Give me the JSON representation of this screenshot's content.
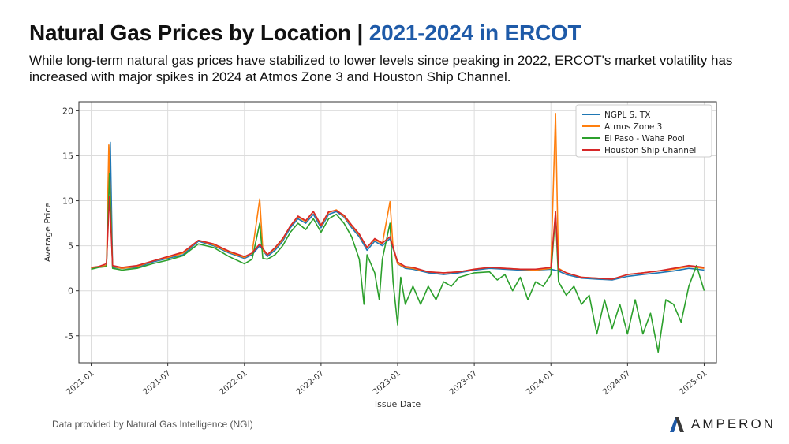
{
  "header": {
    "title_main": "Natural Gas Prices by Location | ",
    "title_accent": "2021-2024 in ERCOT",
    "subtitle": "While long-term natural gas prices have stabilized to lower levels since peaking in 2022, ERCOT's market volatility has increased with major spikes in 2024 at Atmos Zone 3 and Houston Ship Channel."
  },
  "footer": {
    "source": "Data provided by Natural Gas Intelligence (NGI)",
    "brand": "AMPERON",
    "brand_icon": "amperon-logo-icon"
  },
  "chart_data": {
    "type": "line",
    "title": "",
    "xlabel": "Issue Date",
    "ylabel": "Average Price",
    "ylim": [
      -8,
      21
    ],
    "yticks": [
      -5,
      0,
      5,
      10,
      15,
      20
    ],
    "xlim": [
      2020.92,
      2025.08
    ],
    "xticks": [
      {
        "value": 2021.0,
        "label": "2021-01"
      },
      {
        "value": 2021.5,
        "label": "2021-07"
      },
      {
        "value": 2022.0,
        "label": "2022-01"
      },
      {
        "value": 2022.5,
        "label": "2022-07"
      },
      {
        "value": 2023.0,
        "label": "2023-01"
      },
      {
        "value": 2023.5,
        "label": "2023-07"
      },
      {
        "value": 2024.0,
        "label": "2024-01"
      },
      {
        "value": 2024.5,
        "label": "2024-07"
      },
      {
        "value": 2025.0,
        "label": "2025-01"
      }
    ],
    "grid": true,
    "legend": "top-right",
    "series": [
      {
        "name": "NGPL S. TX",
        "color": "#1f77b4",
        "points": [
          [
            2021.0,
            2.5
          ],
          [
            2021.05,
            2.7
          ],
          [
            2021.1,
            2.8
          ],
          [
            2021.125,
            16.5
          ],
          [
            2021.14,
            2.6
          ],
          [
            2021.2,
            2.5
          ],
          [
            2021.3,
            2.6
          ],
          [
            2021.4,
            3.2
          ],
          [
            2021.5,
            3.6
          ],
          [
            2021.6,
            4.0
          ],
          [
            2021.7,
            5.5
          ],
          [
            2021.8,
            5.0
          ],
          [
            2021.9,
            4.2
          ],
          [
            2022.0,
            3.6
          ],
          [
            2022.05,
            4.0
          ],
          [
            2022.1,
            5.0
          ],
          [
            2022.15,
            3.8
          ],
          [
            2022.2,
            4.5
          ],
          [
            2022.25,
            5.5
          ],
          [
            2022.3,
            7.0
          ],
          [
            2022.35,
            8.0
          ],
          [
            2022.4,
            7.5
          ],
          [
            2022.45,
            8.5
          ],
          [
            2022.5,
            7.0
          ],
          [
            2022.55,
            8.5
          ],
          [
            2022.6,
            8.8
          ],
          [
            2022.65,
            8.2
          ],
          [
            2022.7,
            7.0
          ],
          [
            2022.75,
            6.0
          ],
          [
            2022.8,
            4.5
          ],
          [
            2022.85,
            5.5
          ],
          [
            2022.9,
            5.0
          ],
          [
            2022.95,
            5.8
          ],
          [
            2023.0,
            3.0
          ],
          [
            2023.05,
            2.5
          ],
          [
            2023.1,
            2.4
          ],
          [
            2023.2,
            2.0
          ],
          [
            2023.3,
            1.8
          ],
          [
            2023.4,
            2.0
          ],
          [
            2023.5,
            2.3
          ],
          [
            2023.6,
            2.5
          ],
          [
            2023.7,
            2.4
          ],
          [
            2023.8,
            2.3
          ],
          [
            2023.9,
            2.3
          ],
          [
            2024.0,
            2.4
          ],
          [
            2024.05,
            2.2
          ],
          [
            2024.1,
            1.8
          ],
          [
            2024.2,
            1.4
          ],
          [
            2024.3,
            1.3
          ],
          [
            2024.4,
            1.2
          ],
          [
            2024.5,
            1.6
          ],
          [
            2024.6,
            1.8
          ],
          [
            2024.7,
            2.0
          ],
          [
            2024.8,
            2.2
          ],
          [
            2024.9,
            2.5
          ],
          [
            2025.0,
            2.3
          ]
        ]
      },
      {
        "name": "Atmos Zone 3",
        "color": "#ff7f0e",
        "points": [
          [
            2021.0,
            2.5
          ],
          [
            2021.05,
            2.7
          ],
          [
            2021.1,
            2.8
          ],
          [
            2021.115,
            16.2
          ],
          [
            2021.14,
            2.7
          ],
          [
            2021.2,
            2.5
          ],
          [
            2021.3,
            2.7
          ],
          [
            2021.4,
            3.3
          ],
          [
            2021.5,
            3.7
          ],
          [
            2021.6,
            4.2
          ],
          [
            2021.7,
            5.6
          ],
          [
            2021.8,
            5.1
          ],
          [
            2021.9,
            4.3
          ],
          [
            2022.0,
            3.7
          ],
          [
            2022.05,
            4.2
          ],
          [
            2022.1,
            10.2
          ],
          [
            2022.12,
            4.5
          ],
          [
            2022.15,
            4.0
          ],
          [
            2022.2,
            4.7
          ],
          [
            2022.25,
            5.7
          ],
          [
            2022.3,
            7.2
          ],
          [
            2022.35,
            8.2
          ],
          [
            2022.4,
            7.7
          ],
          [
            2022.45,
            8.8
          ],
          [
            2022.5,
            7.2
          ],
          [
            2022.55,
            8.7
          ],
          [
            2022.6,
            9.0
          ],
          [
            2022.65,
            8.3
          ],
          [
            2022.7,
            7.2
          ],
          [
            2022.75,
            6.2
          ],
          [
            2022.8,
            4.8
          ],
          [
            2022.85,
            5.7
          ],
          [
            2022.9,
            5.2
          ],
          [
            2022.95,
            9.9
          ],
          [
            2022.97,
            4.8
          ],
          [
            2023.0,
            3.0
          ],
          [
            2023.05,
            2.6
          ],
          [
            2023.1,
            2.5
          ],
          [
            2023.2,
            2.1
          ],
          [
            2023.3,
            2.0
          ],
          [
            2023.4,
            2.1
          ],
          [
            2023.5,
            2.4
          ],
          [
            2023.6,
            2.6
          ],
          [
            2023.7,
            2.5
          ],
          [
            2023.8,
            2.4
          ],
          [
            2023.9,
            2.3
          ],
          [
            2024.0,
            2.5
          ],
          [
            2024.03,
            19.7
          ],
          [
            2024.05,
            2.5
          ],
          [
            2024.1,
            2.0
          ],
          [
            2024.2,
            1.5
          ],
          [
            2024.3,
            1.4
          ],
          [
            2024.4,
            1.3
          ],
          [
            2024.5,
            1.8
          ],
          [
            2024.6,
            2.0
          ],
          [
            2024.7,
            2.2
          ],
          [
            2024.8,
            2.4
          ],
          [
            2024.9,
            2.7
          ],
          [
            2025.0,
            2.5
          ]
        ]
      },
      {
        "name": "El Paso - Waha Pool",
        "color": "#2ca02c",
        "points": [
          [
            2021.0,
            2.4
          ],
          [
            2021.05,
            2.6
          ],
          [
            2021.1,
            2.7
          ],
          [
            2021.12,
            13.0
          ],
          [
            2021.14,
            2.5
          ],
          [
            2021.2,
            2.3
          ],
          [
            2021.3,
            2.5
          ],
          [
            2021.4,
            3.0
          ],
          [
            2021.5,
            3.4
          ],
          [
            2021.6,
            3.9
          ],
          [
            2021.7,
            5.2
          ],
          [
            2021.8,
            4.8
          ],
          [
            2021.9,
            3.8
          ],
          [
            2022.0,
            3.0
          ],
          [
            2022.05,
            3.5
          ],
          [
            2022.1,
            7.5
          ],
          [
            2022.12,
            3.6
          ],
          [
            2022.15,
            3.5
          ],
          [
            2022.2,
            4.0
          ],
          [
            2022.25,
            5.0
          ],
          [
            2022.3,
            6.5
          ],
          [
            2022.35,
            7.5
          ],
          [
            2022.4,
            6.8
          ],
          [
            2022.45,
            8.0
          ],
          [
            2022.5,
            6.5
          ],
          [
            2022.55,
            8.0
          ],
          [
            2022.6,
            8.5
          ],
          [
            2022.65,
            7.5
          ],
          [
            2022.7,
            6.0
          ],
          [
            2022.75,
            3.5
          ],
          [
            2022.78,
            -1.5
          ],
          [
            2022.8,
            4.0
          ],
          [
            2022.85,
            2.0
          ],
          [
            2022.88,
            -1.0
          ],
          [
            2022.9,
            3.5
          ],
          [
            2022.95,
            7.5
          ],
          [
            2022.97,
            1.0
          ],
          [
            2023.0,
            -3.8
          ],
          [
            2023.02,
            1.5
          ],
          [
            2023.05,
            -1.5
          ],
          [
            2023.1,
            0.5
          ],
          [
            2023.15,
            -1.5
          ],
          [
            2023.2,
            0.5
          ],
          [
            2023.25,
            -1.0
          ],
          [
            2023.3,
            1.0
          ],
          [
            2023.35,
            0.5
          ],
          [
            2023.4,
            1.5
          ],
          [
            2023.5,
            2.0
          ],
          [
            2023.6,
            2.1
          ],
          [
            2023.65,
            1.2
          ],
          [
            2023.7,
            1.8
          ],
          [
            2023.75,
            0.0
          ],
          [
            2023.8,
            1.5
          ],
          [
            2023.85,
            -1.0
          ],
          [
            2023.9,
            1.0
          ],
          [
            2023.95,
            0.5
          ],
          [
            2024.0,
            1.8
          ],
          [
            2024.03,
            8.5
          ],
          [
            2024.05,
            1.0
          ],
          [
            2024.1,
            -0.5
          ],
          [
            2024.15,
            0.5
          ],
          [
            2024.2,
            -1.5
          ],
          [
            2024.25,
            -0.5
          ],
          [
            2024.3,
            -4.8
          ],
          [
            2024.35,
            -1.0
          ],
          [
            2024.4,
            -4.2
          ],
          [
            2024.45,
            -1.5
          ],
          [
            2024.5,
            -4.8
          ],
          [
            2024.55,
            -1.0
          ],
          [
            2024.6,
            -4.8
          ],
          [
            2024.65,
            -2.5
          ],
          [
            2024.7,
            -6.8
          ],
          [
            2024.75,
            -1.0
          ],
          [
            2024.8,
            -1.5
          ],
          [
            2024.85,
            -3.5
          ],
          [
            2024.9,
            0.5
          ],
          [
            2024.95,
            2.8
          ],
          [
            2025.0,
            0.0
          ]
        ]
      },
      {
        "name": "Houston Ship Channel",
        "color": "#d62728",
        "points": [
          [
            2021.0,
            2.6
          ],
          [
            2021.05,
            2.7
          ],
          [
            2021.1,
            3.0
          ],
          [
            2021.12,
            10.5
          ],
          [
            2021.14,
            2.8
          ],
          [
            2021.2,
            2.6
          ],
          [
            2021.3,
            2.8
          ],
          [
            2021.4,
            3.3
          ],
          [
            2021.5,
            3.8
          ],
          [
            2021.6,
            4.3
          ],
          [
            2021.7,
            5.6
          ],
          [
            2021.8,
            5.2
          ],
          [
            2021.9,
            4.4
          ],
          [
            2022.0,
            3.8
          ],
          [
            2022.05,
            4.2
          ],
          [
            2022.1,
            5.2
          ],
          [
            2022.15,
            4.0
          ],
          [
            2022.2,
            4.8
          ],
          [
            2022.25,
            5.8
          ],
          [
            2022.3,
            7.2
          ],
          [
            2022.35,
            8.3
          ],
          [
            2022.4,
            7.8
          ],
          [
            2022.45,
            8.8
          ],
          [
            2022.5,
            7.3
          ],
          [
            2022.55,
            8.8
          ],
          [
            2022.6,
            8.9
          ],
          [
            2022.65,
            8.4
          ],
          [
            2022.7,
            7.3
          ],
          [
            2022.75,
            6.3
          ],
          [
            2022.8,
            4.8
          ],
          [
            2022.85,
            5.8
          ],
          [
            2022.9,
            5.3
          ],
          [
            2022.95,
            6.0
          ],
          [
            2023.0,
            3.2
          ],
          [
            2023.05,
            2.7
          ],
          [
            2023.1,
            2.6
          ],
          [
            2023.2,
            2.1
          ],
          [
            2023.3,
            2.0
          ],
          [
            2023.4,
            2.1
          ],
          [
            2023.5,
            2.4
          ],
          [
            2023.6,
            2.6
          ],
          [
            2023.7,
            2.5
          ],
          [
            2023.8,
            2.4
          ],
          [
            2023.9,
            2.4
          ],
          [
            2024.0,
            2.6
          ],
          [
            2024.03,
            8.8
          ],
          [
            2024.05,
            2.4
          ],
          [
            2024.1,
            2.0
          ],
          [
            2024.2,
            1.5
          ],
          [
            2024.3,
            1.4
          ],
          [
            2024.4,
            1.3
          ],
          [
            2024.5,
            1.8
          ],
          [
            2024.6,
            2.0
          ],
          [
            2024.7,
            2.2
          ],
          [
            2024.8,
            2.5
          ],
          [
            2024.9,
            2.8
          ],
          [
            2025.0,
            2.6
          ]
        ]
      }
    ]
  }
}
